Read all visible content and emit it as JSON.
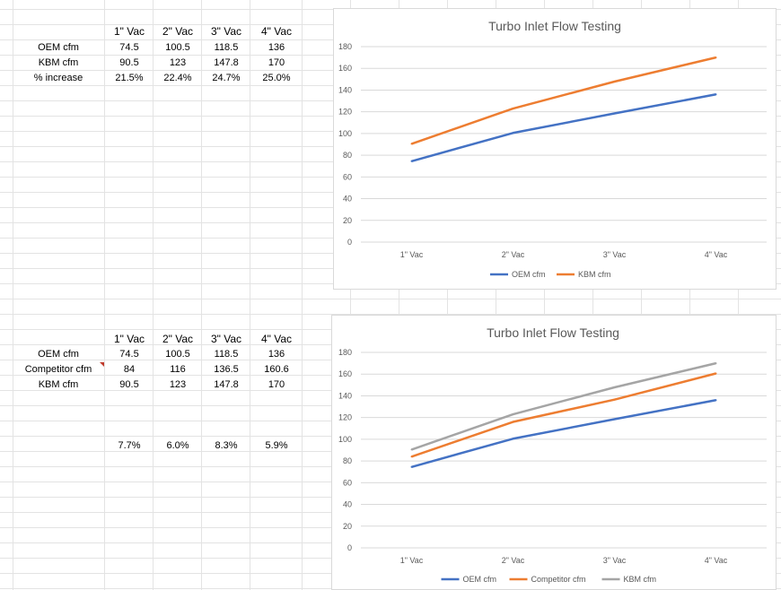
{
  "sheet_top": {
    "headers": [
      "1\" Vac",
      "2\" Vac",
      "3\" Vac",
      "4\" Vac"
    ],
    "rows": [
      {
        "label": "OEM cfm",
        "values": [
          "74.5",
          "100.5",
          "118.5",
          "136"
        ]
      },
      {
        "label": "KBM cfm",
        "values": [
          "90.5",
          "123",
          "147.8",
          "170"
        ]
      },
      {
        "label": "% increase",
        "values": [
          "21.5%",
          "22.4%",
          "24.7%",
          "25.0%"
        ]
      }
    ]
  },
  "sheet_bottom": {
    "headers": [
      "1\" Vac",
      "2\" Vac",
      "3\" Vac",
      "4\" Vac"
    ],
    "rows": [
      {
        "label": "OEM cfm",
        "values": [
          "74.5",
          "100.5",
          "118.5",
          "136"
        ]
      },
      {
        "label": "Competitor cfm",
        "values": [
          "84",
          "116",
          "136.5",
          "160.6"
        ]
      },
      {
        "label": "KBM cfm",
        "values": [
          "90.5",
          "123",
          "147.8",
          "170"
        ]
      }
    ],
    "extra_row": [
      "7.7%",
      "6.0%",
      "8.3%",
      "5.9%"
    ]
  },
  "chart_data": [
    {
      "type": "line",
      "title": "Turbo Inlet Flow Testing",
      "categories": [
        "1\" Vac",
        "2\" Vac",
        "3\" Vac",
        "4\" Vac"
      ],
      "ylim": [
        0,
        180
      ],
      "yticks": [
        "0",
        "20",
        "40",
        "60",
        "80",
        "100",
        "120",
        "140",
        "160",
        "180"
      ],
      "grid": true,
      "legend": "bottom",
      "series": [
        {
          "name": "OEM cfm",
          "color": "#4472c4",
          "values": [
            74.5,
            100.5,
            118.5,
            136
          ]
        },
        {
          "name": "KBM cfm",
          "color": "#ed7d31",
          "values": [
            90.5,
            123,
            147.8,
            170
          ]
        }
      ]
    },
    {
      "type": "line",
      "title": "Turbo Inlet Flow Testing",
      "categories": [
        "1\" Vac",
        "2\" Vac",
        "3\" Vac",
        "4\" Vac"
      ],
      "ylim": [
        0,
        180
      ],
      "yticks": [
        "0",
        "20",
        "40",
        "60",
        "80",
        "100",
        "120",
        "140",
        "160",
        "180"
      ],
      "grid": true,
      "legend": "bottom",
      "series": [
        {
          "name": "OEM cfm",
          "color": "#4472c4",
          "values": [
            74.5,
            100.5,
            118.5,
            136
          ]
        },
        {
          "name": "Competitor cfm",
          "color": "#ed7d31",
          "values": [
            84,
            116,
            136.5,
            160.6
          ]
        },
        {
          "name": "KBM cfm",
          "color": "#a5a5a5",
          "values": [
            90.5,
            123,
            147.8,
            170
          ]
        }
      ]
    }
  ]
}
